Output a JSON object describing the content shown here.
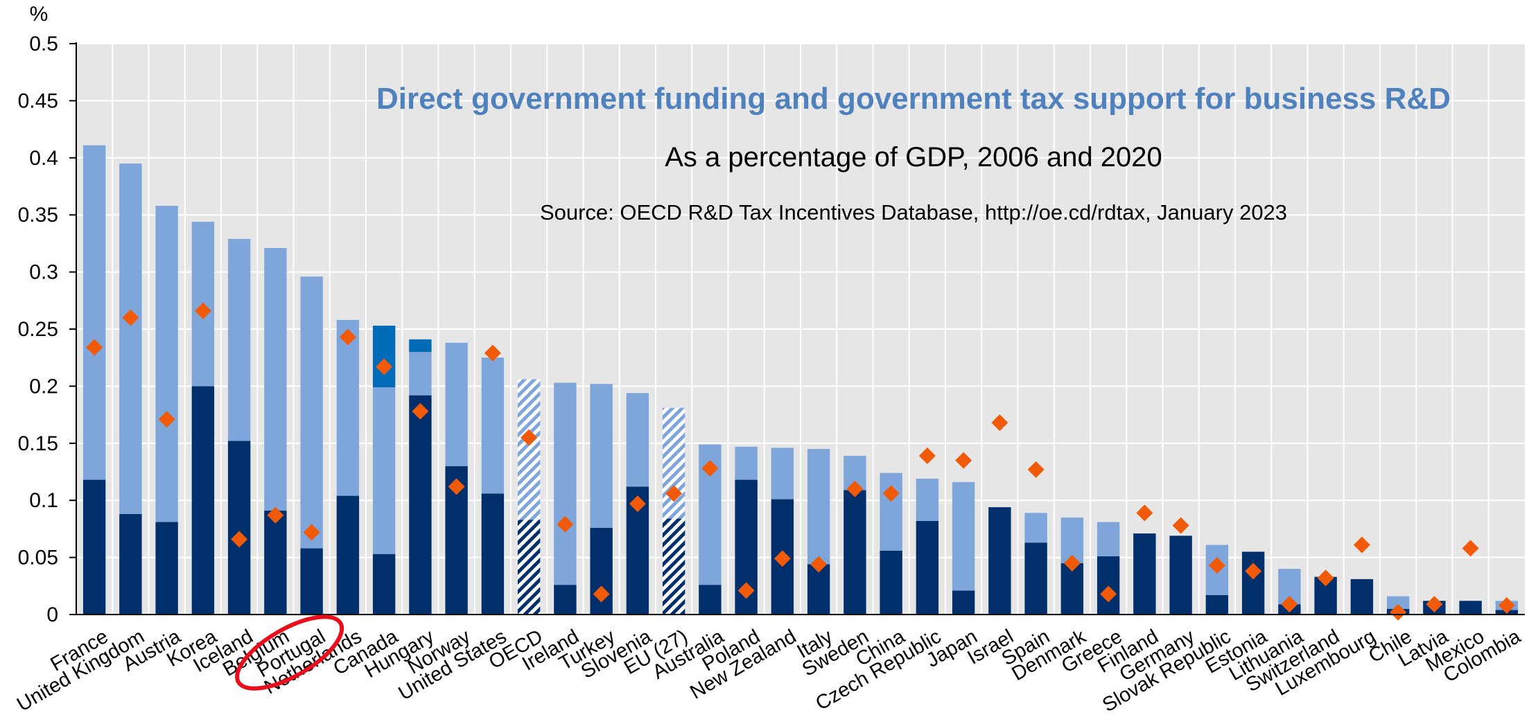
{
  "chart_data": {
    "type": "bar",
    "title": "Direct government funding and government tax support for business R&D",
    "subtitle": "As a percentage of GDP, 2006 and 2020",
    "source": "Source: OECD R&D Tax Incentives Database, http://oe.cd/rdtax, January 2023",
    "ylabel": "%",
    "ylim": [
      0,
      0.5
    ],
    "yticks": [
      "0",
      "0.05",
      "0.1",
      "0.15",
      "0.2",
      "0.25",
      "0.3",
      "0.35",
      "0.4",
      "0.45",
      "0.5"
    ],
    "grid": true,
    "stacked": true,
    "categories": [
      "France",
      "United Kingdom",
      "Austria",
      "Korea",
      "Iceland",
      "Belgium",
      "Portugal",
      "Netherlands",
      "Canada",
      "Hungary",
      "Norway",
      "United States",
      "OECD",
      "Ireland",
      "Turkey",
      "Slovenia",
      "EU (27)",
      "Australia",
      "Poland",
      "New Zealand",
      "Italy",
      "Sweden",
      "China",
      "Czech Republic",
      "Japan",
      "Israel",
      "Spain",
      "Denmark",
      "Greece",
      "Finland",
      "Germany",
      "Slovak Republic",
      "Estonia",
      "Lithuania",
      "Switzerland",
      "Luxembourg",
      "Chile",
      "Latvia",
      "Mexico",
      "Colombia"
    ],
    "series": [
      {
        "values": [
          0.118,
          0.088,
          0.081,
          0.2,
          0.152,
          0.091,
          0.058,
          0.104,
          0.053,
          0.192,
          0.13,
          0.106,
          0.083,
          0.026,
          0.076,
          0.112,
          0.084,
          0.026,
          0.118,
          0.101,
          0.044,
          0.109,
          0.056,
          0.082,
          0.021,
          0.094,
          0.063,
          0.045,
          0.051,
          0.071,
          0.069,
          0.017,
          0.055,
          0.009,
          0.033,
          0.031,
          0.005,
          0.012,
          0.012,
          0.004
        ]
      },
      {
        "values": [
          0.293,
          0.307,
          0.277,
          0.144,
          0.177,
          0.23,
          0.238,
          0.154,
          0.146,
          0.038,
          0.108,
          0.119,
          0.123,
          0.177,
          0.126,
          0.082,
          0.097,
          0.123,
          0.029,
          0.045,
          0.101,
          0.03,
          0.068,
          0.037,
          0.095,
          0.0,
          0.026,
          0.04,
          0.03,
          0.0,
          0.0,
          0.044,
          0.0,
          0.031,
          0.0,
          0.0,
          0.011,
          0.0,
          0.0,
          0.008
        ]
      },
      {
        "values": [
          0,
          0,
          0,
          0,
          0,
          0,
          0,
          0,
          0.054,
          0.011,
          0,
          0,
          0,
          0,
          0,
          0,
          0,
          0,
          0,
          0,
          0,
          0,
          0,
          0,
          0,
          0,
          0,
          0,
          0,
          0,
          0,
          0,
          0,
          0,
          0,
          0,
          0,
          0,
          0,
          0
        ]
      },
      {
        "type": "scatter",
        "values": [
          0.234,
          0.26,
          0.171,
          0.266,
          0.066,
          0.087,
          0.072,
          0.243,
          0.217,
          0.178,
          0.112,
          0.229,
          0.155,
          0.079,
          0.018,
          0.097,
          0.106,
          0.128,
          0.021,
          0.049,
          0.044,
          0.11,
          0.106,
          0.139,
          0.135,
          0.168,
          0.127,
          0.045,
          0.018,
          0.089,
          0.078,
          0.043,
          0.038,
          0.009,
          0.032,
          0.061,
          0.002,
          0.009,
          0.058,
          0.008
        ]
      }
    ],
    "highlight": {
      "category": "Portugal",
      "color": "#e8101c"
    },
    "colors": {
      "dark": "#002f6c",
      "light": "#7ea6db",
      "mid": "#006bb6",
      "marker": "#f15a09",
      "grid": "#ffffff",
      "plot_bg": "#e6e6e6",
      "title": "#4f81bd"
    }
  }
}
